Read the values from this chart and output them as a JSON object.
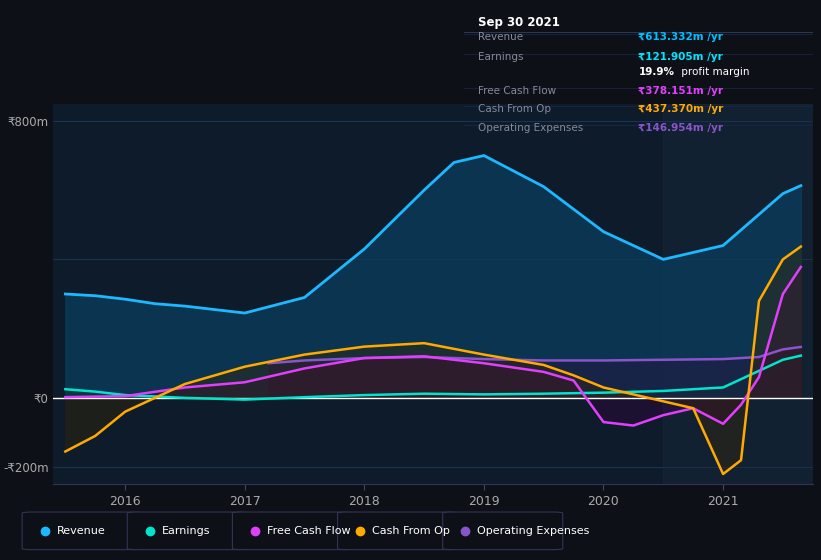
{
  "bg_color": "#0d1117",
  "plot_bg_color": "#0d1b2a",
  "grid_color": "#1e3a5f",
  "zero_line_color": "#ffffff",
  "ylim": [
    -250,
    850
  ],
  "xlim": [
    2015.4,
    2021.75
  ],
  "y_ticks": [
    -200,
    0,
    800
  ],
  "y_tick_labels": [
    "-₹200m",
    "₹0",
    "₹800m"
  ],
  "x_tick_labels": [
    "2016",
    "2017",
    "2018",
    "2019",
    "2020",
    "2021"
  ],
  "x_tick_pos": [
    2016,
    2017,
    2018,
    2019,
    2020,
    2021
  ],
  "shaded_x_start": 2020.5,
  "shaded_x_end": 2021.75,
  "shaded_color": "#1a2a3a",
  "shaded_alpha": 0.45,
  "series": {
    "Revenue": {
      "color": "#1eb8ff",
      "fill_color": "#0a3d5c",
      "fill_alpha": 0.75,
      "linewidth": 2.0,
      "x": [
        2015.5,
        2015.75,
        2016.0,
        2016.25,
        2016.5,
        2017.0,
        2017.5,
        2018.0,
        2018.5,
        2018.75,
        2019.0,
        2019.5,
        2020.0,
        2020.5,
        2021.0,
        2021.5,
        2021.65
      ],
      "y": [
        300,
        295,
        285,
        272,
        265,
        245,
        290,
        430,
        600,
        680,
        700,
        610,
        480,
        400,
        440,
        590,
        613
      ]
    },
    "Earnings": {
      "color": "#00e5cc",
      "fill_color": "#003d33",
      "fill_alpha": 0.5,
      "linewidth": 1.8,
      "x": [
        2015.5,
        2015.75,
        2016.0,
        2016.5,
        2017.0,
        2017.5,
        2018.0,
        2018.5,
        2019.0,
        2019.5,
        2020.0,
        2020.5,
        2021.0,
        2021.5,
        2021.65
      ],
      "y": [
        25,
        18,
        8,
        0,
        -5,
        2,
        8,
        12,
        10,
        12,
        15,
        20,
        30,
        110,
        122
      ]
    },
    "Free Cash Flow": {
      "color": "#e040fb",
      "fill_color": "#3d0040",
      "fill_alpha": 0.35,
      "linewidth": 1.8,
      "x": [
        2015.5,
        2016.0,
        2016.5,
        2017.0,
        2017.5,
        2018.0,
        2018.5,
        2019.0,
        2019.5,
        2019.75,
        2020.0,
        2020.25,
        2020.5,
        2020.75,
        2021.0,
        2021.15,
        2021.3,
        2021.5,
        2021.65
      ],
      "y": [
        2,
        5,
        30,
        45,
        85,
        115,
        120,
        100,
        75,
        50,
        -70,
        -80,
        -50,
        -30,
        -75,
        -20,
        60,
        300,
        378
      ]
    },
    "Cash From Op": {
      "color": "#ffaa00",
      "fill_color": "#3d2800",
      "fill_alpha": 0.35,
      "linewidth": 1.8,
      "x": [
        2015.5,
        2015.75,
        2016.0,
        2016.5,
        2017.0,
        2017.5,
        2018.0,
        2018.5,
        2019.0,
        2019.5,
        2019.75,
        2020.0,
        2020.25,
        2020.5,
        2020.75,
        2021.0,
        2021.15,
        2021.3,
        2021.5,
        2021.65
      ],
      "y": [
        -155,
        -110,
        -40,
        40,
        90,
        125,
        148,
        158,
        125,
        95,
        65,
        30,
        10,
        -10,
        -30,
        -220,
        -180,
        280,
        400,
        437
      ]
    },
    "Operating Expenses": {
      "color": "#8855cc",
      "fill_color": "#2a1040",
      "fill_alpha": 0.45,
      "linewidth": 1.8,
      "x": [
        2017.2,
        2017.5,
        2018.0,
        2018.5,
        2019.0,
        2019.5,
        2020.0,
        2020.5,
        2021.0,
        2021.3,
        2021.5,
        2021.65
      ],
      "y": [
        100,
        108,
        115,
        118,
        112,
        108,
        108,
        110,
        112,
        118,
        140,
        147
      ]
    }
  },
  "title_box": {
    "date": "Sep 30 2021",
    "date_color": "#ffffff",
    "bg_color": "#080e18",
    "border_color": "#2a3a5a",
    "text_color": "#888899",
    "rows": [
      {
        "label": "Revenue",
        "value": "₹613.332m /yr",
        "value_color": "#00bfff"
      },
      {
        "label": "Earnings",
        "value": "₹121.905m /yr",
        "value_color": "#00e5ff"
      },
      {
        "label": "",
        "value": "19.9% profit margin",
        "value_color": "#ffffff"
      },
      {
        "label": "Free Cash Flow",
        "value": "₹378.151m /yr",
        "value_color": "#e040fb"
      },
      {
        "label": "Cash From Op",
        "value": "₹437.370m /yr",
        "value_color": "#ffaa00"
      },
      {
        "label": "Operating Expenses",
        "value": "₹146.954m /yr",
        "value_color": "#8855cc"
      }
    ]
  },
  "legend": [
    {
      "label": "Revenue",
      "color": "#1eb8ff"
    },
    {
      "label": "Earnings",
      "color": "#00e5cc"
    },
    {
      "label": "Free Cash Flow",
      "color": "#e040fb"
    },
    {
      "label": "Cash From Op",
      "color": "#ffaa00"
    },
    {
      "label": "Operating Expenses",
      "color": "#8855cc"
    }
  ]
}
